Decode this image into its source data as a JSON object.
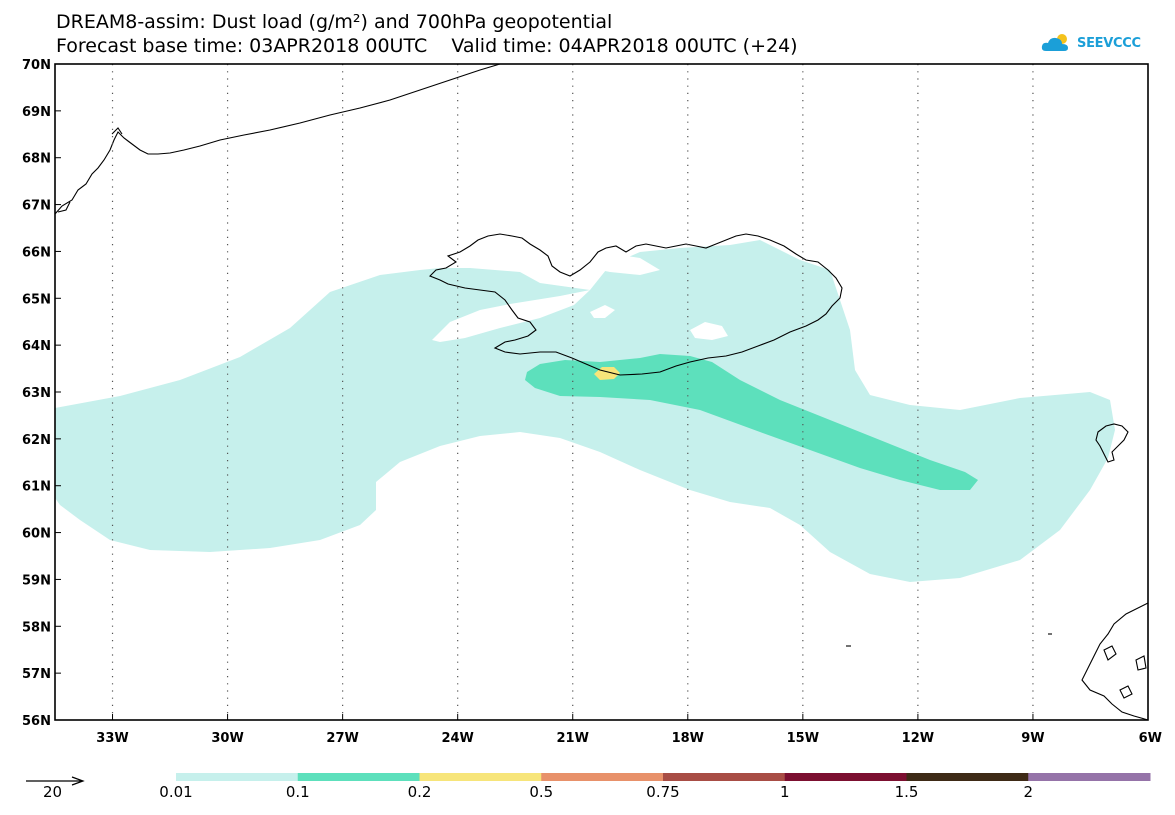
{
  "title": {
    "line1": "DREAM8-assim: Dust load (g/m²) and 700hPa geopotential",
    "line2": "Forecast base time: 03APR2018 00UTC    Valid time: 04APR2018 00UTC (+24)"
  },
  "logo": {
    "text": "SEEVCCC",
    "icon": "cloud-sun-icon"
  },
  "map": {
    "lat_labels": [
      "70N",
      "69N",
      "68N",
      "67N",
      "66N",
      "65N",
      "64N",
      "63N",
      "62N",
      "61N",
      "60N",
      "59N",
      "58N",
      "57N",
      "56N"
    ],
    "lon_labels": [
      "33W",
      "30W",
      "27W",
      "24W",
      "21W",
      "18W",
      "15W",
      "12W",
      "9W",
      "6W"
    ],
    "lat_range": [
      56,
      70
    ],
    "lon_range": [
      -34.5,
      -6
    ],
    "grid": "dotted"
  },
  "legend": {
    "thresholds": [
      "0.01",
      "0.1",
      "0.2",
      "0.5",
      "0.75",
      "1",
      "1.5",
      "2"
    ],
    "colors": [
      "#c6f0ec",
      "#5de0bc",
      "#f7e57a",
      "#e8916a",
      "#a84d45",
      "#7c0f30",
      "#3e2a16",
      "#9573a8"
    ],
    "vector_label": "20"
  }
}
